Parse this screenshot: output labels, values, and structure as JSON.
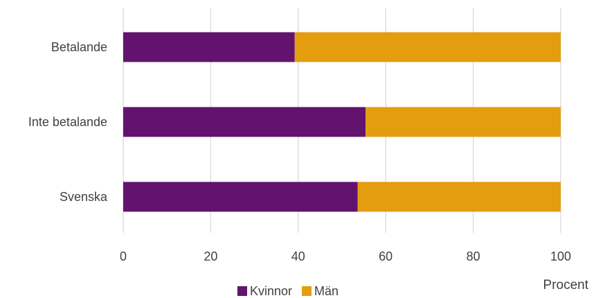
{
  "chart_data": {
    "type": "bar",
    "orientation": "horizontal",
    "stacked": true,
    "categories": [
      "Betalande",
      "Inte betalande",
      "Svenska"
    ],
    "series": [
      {
        "name": "Kvinnor",
        "color": "#62136e",
        "values": [
          39.2,
          55.4,
          53.6
        ]
      },
      {
        "name": "Män",
        "color": "#e39d0e",
        "values": [
          60.8,
          44.6,
          46.4
        ]
      }
    ],
    "xlim": [
      0,
      100
    ],
    "xticks": [
      0,
      20,
      40,
      60,
      80,
      100
    ],
    "xlabel": "Procent",
    "grid": "vertical",
    "legend_position": "bottom"
  }
}
